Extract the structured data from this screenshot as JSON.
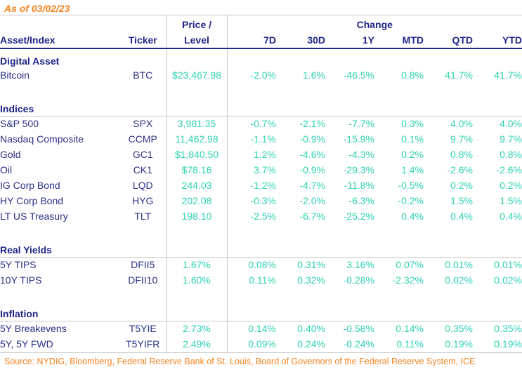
{
  "as_of": "As of 03/02/23",
  "header": {
    "asset_index": "Asset/Index",
    "ticker": "Ticker",
    "price_line1": "Price /",
    "price_line2": "Level",
    "change_group": "Change",
    "periods": [
      "7D",
      "30D",
      "1Y",
      "MTD",
      "QTD",
      "YTD"
    ]
  },
  "sections": [
    {
      "name": "Digital Asset",
      "rows": [
        {
          "asset": "Bitcoin",
          "ticker": "BTC",
          "price": "$23,467.98",
          "changes": [
            "-2.0%",
            "1.6%",
            "-46.5%",
            "0.8%",
            "41.7%",
            "41.7%"
          ]
        }
      ]
    },
    {
      "name": "Indices",
      "rows": [
        {
          "asset": "S&P 500",
          "ticker": "SPX",
          "price": "3,981.35",
          "changes": [
            "-0.7%",
            "-2.1%",
            "-7.7%",
            "0.3%",
            "4.0%",
            "4.0%"
          ]
        },
        {
          "asset": "Nasdaq Composite",
          "ticker": "CCMP",
          "price": "11,462.98",
          "changes": [
            "-1.1%",
            "-0.9%",
            "-15.9%",
            "0.1%",
            "9.7%",
            "9.7%"
          ]
        },
        {
          "asset": "Gold",
          "ticker": "GC1",
          "price": "$1,840.50",
          "changes": [
            "1.2%",
            "-4.6%",
            "-4.3%",
            "0.2%",
            "0.8%",
            "0.8%"
          ]
        },
        {
          "asset": "Oil",
          "ticker": "CK1",
          "price": "$78.16",
          "changes": [
            "3.7%",
            "-0.9%",
            "-29.3%",
            "1.4%",
            "-2.6%",
            "-2.6%"
          ]
        },
        {
          "asset": "IG Corp Bond",
          "ticker": "LQD",
          "price": "244.03",
          "changes": [
            "-1.2%",
            "-4.7%",
            "-11.8%",
            "-0.5%",
            "0.2%",
            "0.2%"
          ]
        },
        {
          "asset": "HY Corp Bond",
          "ticker": "HYG",
          "price": "202.08",
          "changes": [
            "-0.3%",
            "-2.0%",
            "-6.3%",
            "-0.2%",
            "1.5%",
            "1.5%"
          ]
        },
        {
          "asset": "LT US Treasury",
          "ticker": "TLT",
          "price": "198.10",
          "changes": [
            "-2.5%",
            "-6.7%",
            "-25.2%",
            "0.4%",
            "0.4%",
            "0.4%"
          ]
        }
      ]
    },
    {
      "name": "Real Yields",
      "rows": [
        {
          "asset": "5Y TIPS",
          "ticker": "DFII5",
          "price": "1.67%",
          "changes": [
            "0.08%",
            "0.31%",
            "3.16%",
            "0.07%",
            "0.01%",
            "0.01%"
          ]
        },
        {
          "asset": "10Y TIPS",
          "ticker": "DFII10",
          "price": "1.60%",
          "changes": [
            "0.11%",
            "0.32%",
            "-0.28%",
            "-2.32%",
            "0.02%",
            "0.02%"
          ]
        }
      ]
    },
    {
      "name": "Inflation",
      "rows": [
        {
          "asset": "5Y Breakevens",
          "ticker": "T5YIE",
          "price": "2.73%",
          "changes": [
            "0.14%",
            "0.40%",
            "-0.58%",
            "0.14%",
            "0.35%",
            "0.35%"
          ]
        },
        {
          "asset": "5Y, 5Y FWD",
          "ticker": "T5YIFR",
          "price": "2.49%",
          "changes": [
            "0.09%",
            "0.24%",
            "-0.24%",
            "0.11%",
            "0.19%",
            "0.19%"
          ]
        }
      ]
    }
  ],
  "source": "Source: NYDIG, Bloomberg, Federal Reserve Bank of St. Louis, Board of Governors of the Federal Reserve System, ICE",
  "colors": {
    "navy": "#1f2488",
    "teal": "#2fd3b1",
    "orange": "#f6821f",
    "rule_gray": "#c9c9c9"
  }
}
